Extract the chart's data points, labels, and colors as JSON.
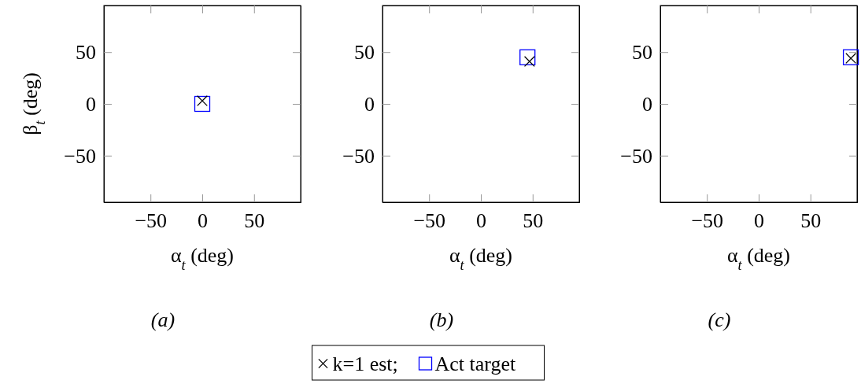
{
  "chart_data": [
    {
      "type": "scatter",
      "xlabel": "α$_{t}$ (deg)",
      "ylabel": "β$_{t}$ (deg)",
      "xlim": [
        -95,
        95
      ],
      "ylim": [
        -95,
        95
      ],
      "xticks": [
        -50,
        0,
        50
      ],
      "yticks": [
        -50,
        0,
        50
      ],
      "grid": false,
      "annotations": [
        "(a)"
      ],
      "series": [
        {
          "color": "#0000ff",
          "marker": "square",
          "x": [
            0
          ],
          "values": [
            0
          ]
        },
        {
          "color": "#000000",
          "marker": "cross",
          "x": [
            0
          ],
          "values": [
            3
          ]
        }
      ]
    },
    {
      "type": "scatter",
      "xlabel": "α$_{t}$ (deg)",
      "xlim": [
        -95,
        95
      ],
      "ylim": [
        -95,
        95
      ],
      "xticks": [
        -50,
        0,
        50
      ],
      "yticks": [
        -50,
        0,
        50
      ],
      "grid": false,
      "annotations": [
        "(b)"
      ],
      "legend": "bottom",
      "series": [
        {
          "name": "Act target",
          "color": "#0000ff",
          "marker": "square",
          "x": [
            45
          ],
          "values": [
            45
          ]
        },
        {
          "name": "k=1 est;",
          "color": "#000000",
          "marker": "cross",
          "x": [
            47
          ],
          "values": [
            41
          ]
        }
      ]
    },
    {
      "type": "scatter",
      "xlabel": "α$_{t}$ (deg)",
      "xlim": [
        -95,
        95
      ],
      "ylim": [
        -95,
        95
      ],
      "xticks": [
        -50,
        0,
        50
      ],
      "yticks": [
        -50,
        0,
        50
      ],
      "grid": false,
      "annotations": [
        "(c)"
      ],
      "series": [
        {
          "color": "#0000ff",
          "marker": "square",
          "x": [
            89
          ],
          "values": [
            45
          ]
        },
        {
          "color": "#000000",
          "marker": "cross",
          "x": [
            89
          ],
          "values": [
            44
          ]
        }
      ]
    }
  ]
}
